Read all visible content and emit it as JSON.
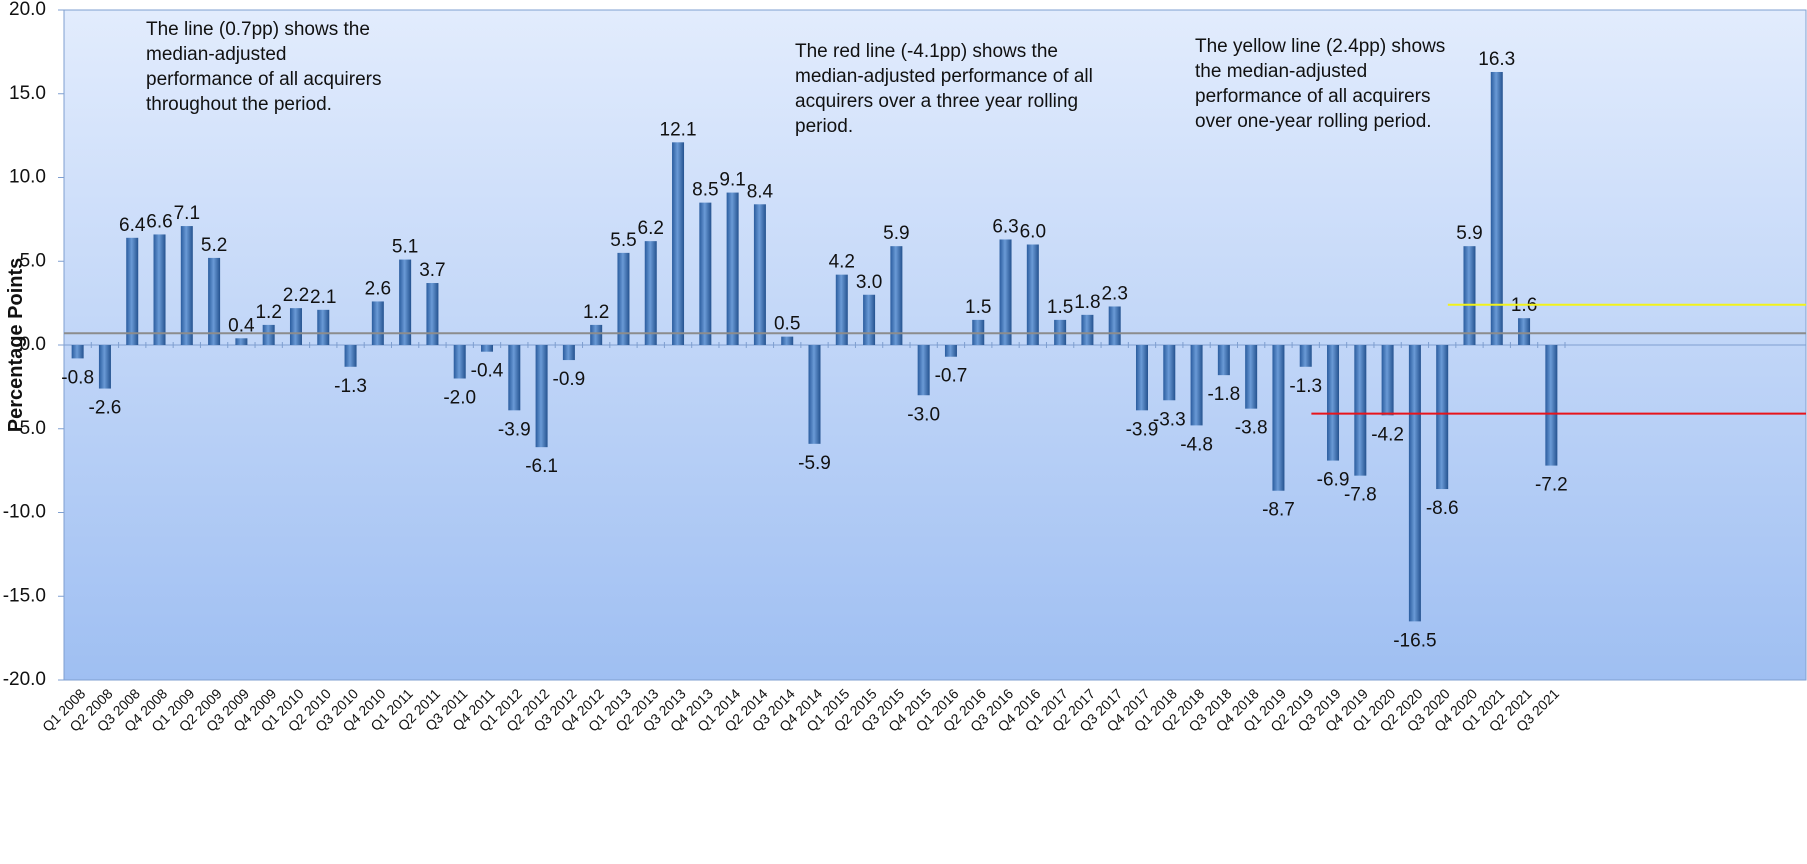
{
  "chart_data": {
    "type": "bar",
    "y_label": "Percentage Points",
    "categories": [
      "Q1 2008",
      "Q2 2008",
      "Q3 2008",
      "Q4 2008",
      "Q1 2009",
      "Q2 2009",
      "Q3 2009",
      "Q4 2009",
      "Q1 2010",
      "Q2 2010",
      "Q3 2010",
      "Q4 2010",
      "Q1 2011",
      "Q2 2011",
      "Q3 2011",
      "Q4 2011",
      "Q1 2012",
      "Q2 2012",
      "Q3 2012",
      "Q4 2012",
      "Q1 2013",
      "Q2 2013",
      "Q3 2013",
      "Q4 2013",
      "Q1 2014",
      "Q2 2014",
      "Q3 2014",
      "Q4 2014",
      "Q1 2015",
      "Q2 2015",
      "Q3 2015",
      "Q4 2015",
      "Q1 2016",
      "Q2 2016",
      "Q3 2016",
      "Q4 2016",
      "Q1 2017",
      "Q2 2017",
      "Q3 2017",
      "Q4 2017",
      "Q1 2018",
      "Q2 2018",
      "Q3 2018",
      "Q4 2018",
      "Q1 2019",
      "Q2 2019",
      "Q3 2019",
      "Q4 2019",
      "Q1 2020",
      "Q2 2020",
      "Q3 2020",
      "Q4 2020",
      "Q1 2021",
      "Q2 2021",
      "Q3 2021"
    ],
    "values": [
      -0.8,
      -2.6,
      6.4,
      6.6,
      7.1,
      5.2,
      0.4,
      1.2,
      2.2,
      2.1,
      -1.3,
      2.6,
      5.1,
      3.7,
      -2.0,
      -0.4,
      -3.9,
      -6.1,
      -0.9,
      1.2,
      5.5,
      6.2,
      12.1,
      8.5,
      9.1,
      8.4,
      0.5,
      -5.9,
      4.2,
      3.0,
      5.9,
      -3.0,
      -0.7,
      1.5,
      6.3,
      6.0,
      1.5,
      1.8,
      2.3,
      -3.9,
      -3.3,
      -4.8,
      -1.8,
      -3.8,
      -8.7,
      -1.3,
      -6.9,
      -7.8,
      -4.2,
      -16.5,
      -8.6,
      5.9,
      16.3,
      1.6,
      -7.2
    ],
    "value_labels": [
      "-0.8",
      "-2.6",
      "6.4",
      "6.6",
      "7.1",
      "5.2",
      "0.4",
      "1.2",
      "2.2",
      "2.1",
      "-1.3",
      "2.6",
      "5.1",
      "3.7",
      "-2.0",
      "-0.4",
      "-3.9",
      "-6.1",
      "-0.9",
      "1.2",
      "5.5",
      "6.2",
      "12.1",
      "8.5",
      "9.1",
      "8.4",
      "0.5",
      "-5.9",
      "4.2",
      "3.0",
      "5.9",
      "-3.0",
      "-0.7",
      "1.5",
      "6.3",
      "6.0",
      "1.5",
      "1.8",
      "2.3",
      "-3.9",
      "-3.3",
      "-4.8",
      "-1.8",
      "-3.8",
      "-8.7",
      "-1.3",
      "-6.9",
      "-7.8",
      "-4.2",
      "-16.5",
      "-8.6",
      "5.9",
      "16.3",
      "1.6",
      "-7.2"
    ],
    "color": "#3d72b8",
    "ylim": [
      -20,
      20
    ],
    "yticks": [
      {
        "value": 20,
        "label": "20.0"
      },
      {
        "value": 15,
        "label": "15.0"
      },
      {
        "value": 10,
        "label": "10.0"
      },
      {
        "value": 5,
        "label": "5.0"
      },
      {
        "value": 0,
        "label": "0.0"
      },
      {
        "value": -5,
        "label": "-5.0"
      },
      {
        "value": -10,
        "label": "-10.0"
      },
      {
        "value": -15,
        "label": "-15.0"
      },
      {
        "value": -20,
        "label": "-20.0"
      }
    ],
    "reference_lines": [
      {
        "value": 0.7,
        "color": "#8c8c8c",
        "start": "Q1 2008"
      },
      {
        "value": -4.1,
        "color": "#e8141b",
        "start": "Q3 2019"
      },
      {
        "value": 2.4,
        "color": "#f2f21a",
        "start": "Q4 2020"
      }
    ],
    "annotations": [
      {
        "lines": [
          "The line (0.7pp) shows the",
          "median-adjusted",
          "performance of all acquirers",
          "throughout the period."
        ]
      },
      {
        "lines": [
          "The red line (-4.1pp) shows the",
          "median-adjusted performance of all",
          "acquirers over a three year rolling",
          "period."
        ]
      },
      {
        "lines": [
          "The yellow line (2.4pp) shows",
          "the median-adjusted",
          "performance of all acquirers",
          "over one-year rolling period."
        ]
      }
    ]
  }
}
